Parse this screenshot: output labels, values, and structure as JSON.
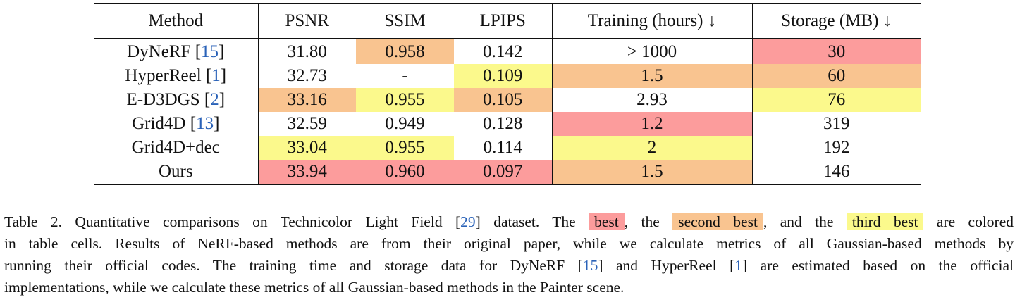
{
  "table": {
    "headers": [
      "Method",
      "PSNR",
      "SSIM",
      "LPIPS",
      "Training (hours) ↓",
      "Storage (MB) ↓"
    ],
    "rows": [
      {
        "name": "DyNeRF",
        "ref": "15",
        "cells": [
          "31.80",
          "0.958",
          "0.142",
          "> 1000",
          "30"
        ],
        "ranks": [
          "",
          "second",
          "",
          "",
          "best"
        ]
      },
      {
        "name": "HyperReel",
        "ref": "1",
        "cells": [
          "32.73",
          "-",
          "0.109",
          "1.5",
          "60"
        ],
        "ranks": [
          "",
          "",
          "third",
          "second",
          "second"
        ]
      },
      {
        "name": "E-D3DGS",
        "ref": "2",
        "cells": [
          "33.16",
          "0.955",
          "0.105",
          "2.93",
          "76"
        ],
        "ranks": [
          "second",
          "third",
          "second",
          "",
          "third"
        ]
      },
      {
        "name": "Grid4D",
        "ref": "13",
        "cells": [
          "32.59",
          "0.949",
          "0.128",
          "1.2",
          "319"
        ],
        "ranks": [
          "",
          "",
          "",
          "best",
          ""
        ]
      },
      {
        "name": "Grid4D+dec",
        "ref": "",
        "cells": [
          "33.04",
          "0.955",
          "0.114",
          "2",
          "192"
        ],
        "ranks": [
          "third",
          "third",
          "",
          "third",
          ""
        ]
      },
      {
        "name": "Ours",
        "ref": "",
        "cells": [
          "33.94",
          "0.960",
          "0.097",
          "1.5",
          "146"
        ],
        "ranks": [
          "best",
          "best",
          "best",
          "second",
          ""
        ]
      }
    ]
  },
  "colors": {
    "best": "#fc9c9c",
    "second": "#f9c490",
    "third": "#fbf98c",
    "citation": "#2a62b8"
  },
  "caption": {
    "label": "Table 2.",
    "t1": "Quantitative comparisons on Technicolor Light Field [",
    "ref_tlf": "29",
    "t2": "] dataset. The",
    "best": "best",
    "t3": ", the",
    "second": "second best",
    "t4": ", and the",
    "third": "third best",
    "t5": "are colored",
    "line2": "in table cells. Results of NeRF-based methods are from their original paper, while we calculate metrics of all Gaussian-based methods by",
    "t6": "running their official codes. The training time and storage data for DyNeRF [",
    "ref_dynerf": "15",
    "t7": "] and HyperReel [",
    "ref_hyperreel": "1",
    "t8": "] are estimated based on the official",
    "line4": "implementations, while we calculate these metrics of all Gaussian-based methods in the Painter scene."
  }
}
